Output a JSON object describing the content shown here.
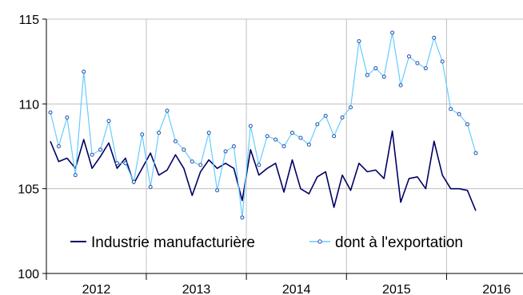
{
  "chart_data": {
    "type": "line",
    "title": "",
    "xlabel": "",
    "ylabel": "",
    "ylim": [
      100,
      115
    ],
    "yticks": [
      100,
      105,
      110,
      115
    ],
    "year_labels": [
      "2012",
      "2013",
      "2014",
      "2015",
      "2016"
    ],
    "grid": "vertical lines at year boundaries; horizontal lines at y ticks",
    "legend_position": "inside, lower area",
    "series": [
      {
        "name": "Industrie manufacturière",
        "color": "#000066",
        "marker": "none",
        "values": [
          107.8,
          106.6,
          106.8,
          106.2,
          107.9,
          106.2,
          106.9,
          107.7,
          106.2,
          106.8,
          105.3,
          106.2,
          107.1,
          105.8,
          106.1,
          107.0,
          106.2,
          104.6,
          106.0,
          106.7,
          106.2,
          106.5,
          106.2,
          104.3,
          107.3,
          105.8,
          106.2,
          106.5,
          104.8,
          106.7,
          105.0,
          104.7,
          105.7,
          106.0,
          103.9,
          105.8,
          104.9,
          106.5,
          106.0,
          106.1,
          105.6,
          108.4,
          104.2,
          105.6,
          105.7,
          105.0,
          107.8,
          105.8,
          105.0,
          105.0,
          104.9,
          103.7
        ]
      },
      {
        "name": "dont à l'exportation",
        "color": "#66ccff",
        "marker": "circle",
        "values": [
          109.5,
          107.5,
          109.2,
          105.8,
          111.9,
          107.0,
          107.3,
          109.0,
          106.5,
          106.5,
          105.4,
          108.2,
          105.1,
          108.3,
          109.6,
          107.8,
          107.3,
          106.6,
          106.4,
          108.3,
          104.9,
          107.2,
          107.5,
          103.3,
          108.7,
          106.4,
          108.1,
          107.9,
          107.5,
          108.3,
          108.0,
          107.6,
          108.8,
          109.3,
          108.1,
          109.2,
          109.8,
          113.7,
          111.7,
          112.1,
          111.6,
          114.2,
          111.1,
          112.8,
          112.4,
          112.1,
          113.9,
          112.5,
          109.7,
          109.4,
          108.8,
          107.1
        ]
      }
    ]
  }
}
